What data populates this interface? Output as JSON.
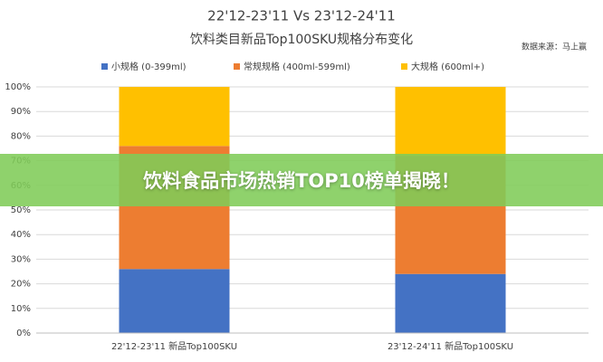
{
  "chart_data": {
    "type": "bar",
    "stacked": true,
    "title": "22'12-23'11 Vs 23'12-24'11",
    "subtitle": "饮料类目新品Top100SKU规格分布变化",
    "source": "数据来源：马上赢",
    "categories": [
      "22'12-23'11 新品Top100SKU",
      "23'12-24'11 新品Top100SKU"
    ],
    "series": [
      {
        "name": "小规格 (0-399ml)",
        "color": "#4472c4",
        "values": [
          26,
          24
        ]
      },
      {
        "name": "常规规格 (400ml-599ml)",
        "color": "#ed7d31",
        "values": [
          50,
          48
        ]
      },
      {
        "name": "大规格 (600ml+)",
        "color": "#ffc000",
        "values": [
          24,
          28
        ]
      }
    ],
    "ylim": [
      0,
      100
    ],
    "yticks": [
      {
        "value": 0,
        "label": "0%"
      },
      {
        "value": 10,
        "label": "10%"
      },
      {
        "value": 20,
        "label": "20%"
      },
      {
        "value": 30,
        "label": "30%"
      },
      {
        "value": 40,
        "label": "40%"
      },
      {
        "value": 50,
        "label": "50%"
      },
      {
        "value": 60,
        "label": "60%"
      },
      {
        "value": 70,
        "label": "70%"
      },
      {
        "value": 80,
        "label": "80%"
      },
      {
        "value": 90,
        "label": "90%"
      },
      {
        "value": 100,
        "label": "100%"
      }
    ],
    "grid": true
  },
  "banner": {
    "text": "饮料食品市场热销TOP10榜单揭晓！"
  }
}
